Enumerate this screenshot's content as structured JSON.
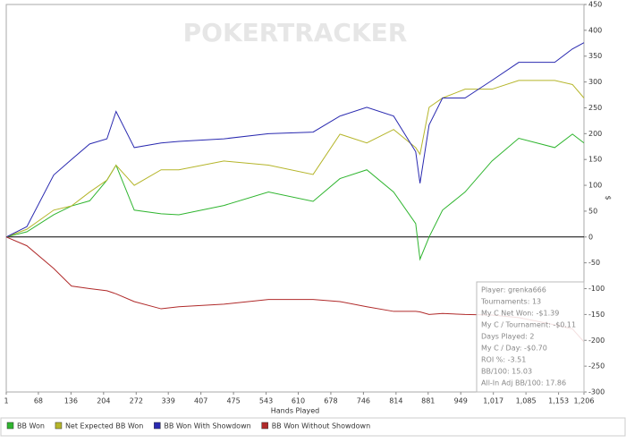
{
  "chart_data": {
    "type": "line",
    "x_label": "Hands Played",
    "y_label": "$",
    "x": [
      1,
      44,
      100,
      137,
      175,
      211,
      230,
      268,
      324,
      361,
      455,
      548,
      641,
      697,
      753,
      809,
      855,
      864,
      883,
      911,
      958,
      1014,
      1070,
      1145,
      1182,
      1206
    ],
    "series": [
      {
        "name": "BB Won",
        "color": "#2fb52f",
        "values": [
          0,
          10,
          43,
          60,
          70,
          110,
          139,
          52,
          45,
          43,
          61,
          87,
          69,
          113,
          130,
          87,
          26,
          -43,
          0,
          52,
          87,
          147,
          191,
          173,
          199,
          182
        ]
      },
      {
        "name": "Net Expected BB Won",
        "color": "#b5b52a",
        "values": [
          0,
          15,
          52,
          60,
          87,
          110,
          139,
          100,
          130,
          130,
          147,
          139,
          121,
          199,
          182,
          208,
          173,
          160,
          251,
          269,
          286,
          286,
          303,
          303,
          295,
          269
        ]
      },
      {
        "name": "BB Won With Showdown",
        "color": "#2a2ab0",
        "values": [
          0,
          20,
          120,
          150,
          180,
          190,
          243,
          173,
          182,
          185,
          190,
          200,
          203,
          234,
          251,
          234,
          165,
          104,
          217,
          269,
          269,
          303,
          338,
          338,
          364,
          376
        ]
      },
      {
        "name": "BB Won Without Showdown",
        "color": "#b02a2a",
        "values": [
          0,
          -17,
          -61,
          -95,
          -100,
          -104,
          -110,
          -125,
          -139,
          -135,
          -130,
          -121,
          -121,
          -125,
          -135,
          -144,
          -144,
          -145,
          -150,
          -148,
          -150,
          -151,
          -156,
          -170,
          -178,
          -203
        ]
      }
    ],
    "xlim": [
      1,
      1206
    ],
    "xticks": [
      1,
      68,
      136,
      204,
      272,
      339,
      407,
      475,
      543,
      610,
      678,
      746,
      814,
      881,
      949,
      {
        "value": 1017,
        "label": "1,017"
      },
      {
        "value": 1085,
        "label": "1,085"
      },
      {
        "value": 1153,
        "label": "1,153"
      },
      {
        "value": 1206,
        "label": "1,206"
      }
    ],
    "ylim": [
      -300,
      450
    ],
    "yticks": [
      450,
      400,
      350,
      300,
      250,
      200,
      150,
      100,
      50,
      0,
      -50,
      -100,
      -150,
      -200,
      -250,
      -300
    ],
    "legend": "bottom"
  },
  "watermark": "POKERTRACKER",
  "info_box": [
    "Player: grenka666",
    "Tournaments: 13",
    "My C Net Won: -$1.39",
    "My C / Tournament: -$0.11",
    "Days Played: 2",
    "My C / Day: -$0.70",
    "ROI %: -3.51",
    "BB/100: 15.03",
    "All-In Adj BB/100: 17.86"
  ]
}
